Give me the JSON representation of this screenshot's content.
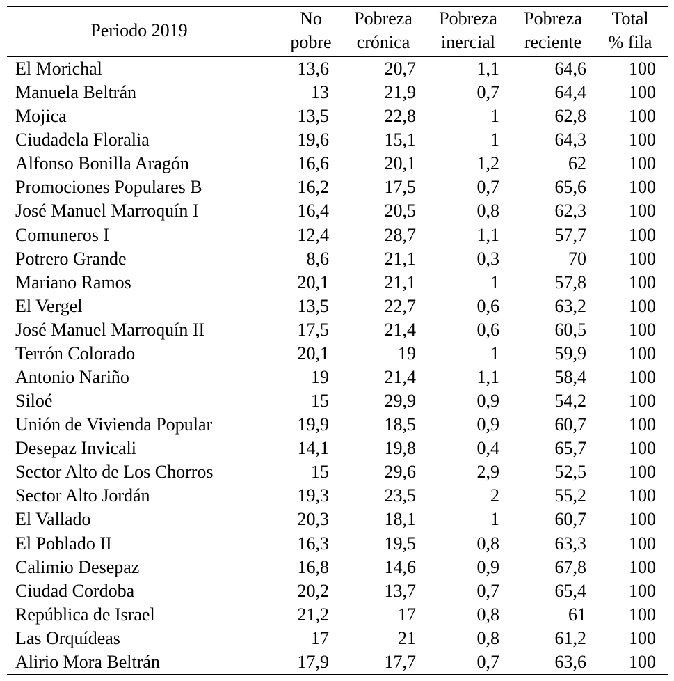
{
  "table": {
    "header": [
      [
        "Periodo 2019"
      ],
      [
        "No",
        "pobre"
      ],
      [
        "Pobreza",
        "crónica"
      ],
      [
        "Pobreza",
        "inercial"
      ],
      [
        "Pobreza",
        "reciente"
      ],
      [
        "Total",
        "% fila"
      ]
    ],
    "rows": [
      [
        "El Morichal",
        "13,6",
        "20,7",
        "1,1",
        "64,6",
        "100"
      ],
      [
        "Manuela Beltrán",
        "13",
        "21,9",
        "0,7",
        "64,4",
        "100"
      ],
      [
        "Mojica",
        "13,5",
        "22,8",
        "1",
        "62,8",
        "100"
      ],
      [
        "Ciudadela Floralia",
        "19,6",
        "15,1",
        "1",
        "64,3",
        "100"
      ],
      [
        "Alfonso Bonilla Aragón",
        "16,6",
        "20,1",
        "1,2",
        "62",
        "100"
      ],
      [
        "Promociones Populares B",
        "16,2",
        "17,5",
        "0,7",
        "65,6",
        "100"
      ],
      [
        "José Manuel Marroquín I",
        "16,4",
        "20,5",
        "0,8",
        "62,3",
        "100"
      ],
      [
        "Comuneros I",
        "12,4",
        "28,7",
        "1,1",
        "57,7",
        "100"
      ],
      [
        "Potrero Grande",
        "8,6",
        "21,1",
        "0,3",
        "70",
        "100"
      ],
      [
        "Mariano Ramos",
        "20,1",
        "21,1",
        "1",
        "57,8",
        "100"
      ],
      [
        "El Vergel",
        "13,5",
        "22,7",
        "0,6",
        "63,2",
        "100"
      ],
      [
        "José Manuel Marroquín II",
        "17,5",
        "21,4",
        "0,6",
        "60,5",
        "100"
      ],
      [
        "Terrón Colorado",
        "20,1",
        "19",
        "1",
        "59,9",
        "100"
      ],
      [
        "Antonio Nariño",
        "19",
        "21,4",
        "1,1",
        "58,4",
        "100"
      ],
      [
        "Siloé",
        "15",
        "29,9",
        "0,9",
        "54,2",
        "100"
      ],
      [
        "Unión de Vivienda Popular",
        "19,9",
        "18,5",
        "0,9",
        "60,7",
        "100"
      ],
      [
        "Desepaz Invicali",
        "14,1",
        "19,8",
        "0,4",
        "65,7",
        "100"
      ],
      [
        "Sector Alto de Los Chorros",
        "15",
        "29,6",
        "2,9",
        "52,5",
        "100"
      ],
      [
        "Sector Alto Jordán",
        "19,3",
        "23,5",
        "2",
        "55,2",
        "100"
      ],
      [
        "El Vallado",
        "20,3",
        "18,1",
        "1",
        "60,7",
        "100"
      ],
      [
        "El Poblado II",
        "16,3",
        "19,5",
        "0,8",
        "63,3",
        "100"
      ],
      [
        "Calimio Desepaz",
        "16,8",
        "14,6",
        "0,9",
        "67,8",
        "100"
      ],
      [
        "Ciudad Cordoba",
        "20,2",
        "13,7",
        "0,7",
        "65,4",
        "100"
      ],
      [
        "República de Israel",
        "21,2",
        "17",
        "0,8",
        "61",
        "100"
      ],
      [
        "Las Orquídeas",
        "17",
        "21",
        "0,8",
        "61,2",
        "100"
      ],
      [
        "Alirio Mora Beltrán",
        "17,9",
        "17,7",
        "0,7",
        "63,6",
        "100"
      ]
    ]
  }
}
